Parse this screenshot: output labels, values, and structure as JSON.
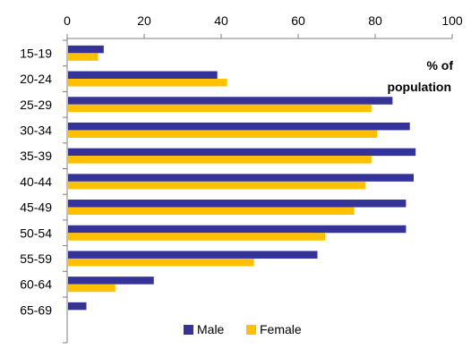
{
  "chart_data": {
    "type": "bar",
    "orientation": "horizontal",
    "categories": [
      "15-19",
      "20-24",
      "25-29",
      "30-34",
      "35-39",
      "40-44",
      "45-49",
      "50-54",
      "55-59",
      "60-64",
      "65-69"
    ],
    "series": [
      {
        "name": "Male",
        "color": "#333399",
        "values": [
          9.5,
          39,
          84.5,
          89,
          90.5,
          90,
          88,
          88,
          65,
          22.5,
          5
        ]
      },
      {
        "name": "Female",
        "color": "#FFC000",
        "values": [
          8,
          41.5,
          79,
          80.5,
          79,
          77.5,
          74.5,
          67,
          48.5,
          12.5,
          0
        ]
      }
    ],
    "xticks": [
      "0",
      "20",
      "40",
      "60",
      "80",
      "100"
    ],
    "xlim": [
      0,
      100
    ],
    "unit_label_line1": "% of",
    "unit_label_line2": "population",
    "grid": false,
    "legend_position": "bottom",
    "x_axis_position": "top"
  }
}
